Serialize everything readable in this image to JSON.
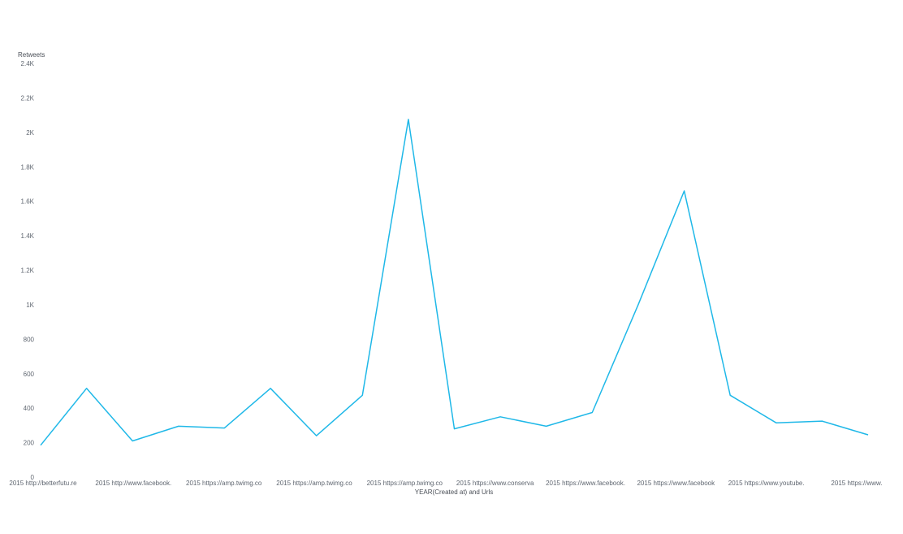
{
  "chart_data": {
    "type": "line",
    "title": "",
    "xlabel": "YEAR(Created at) and Urls",
    "ylabel": "Retweets",
    "ylim": [
      0,
      2400
    ],
    "yticks": [
      0,
      200,
      400,
      600,
      800,
      1000,
      1200,
      1400,
      1600,
      1800,
      2000,
      2200,
      2400
    ],
    "ytick_labels": [
      "0",
      "200",
      "400",
      "600",
      "800",
      "1K",
      "1.2K",
      "1.4K",
      "1.6K",
      "1.8K",
      "2K",
      "2.2K",
      "2.4K"
    ],
    "grid": false,
    "x_tick_labels": [
      "2015 http://betterfutu.re",
      "2015 http://www.facebook.",
      "2015 https://amp.twimg.co",
      "2015 https://amp.twimg.co",
      "2015 https://amp.twimg.co",
      "2015 https://www.conserva",
      "2015 https://www.facebook.",
      "2015 https://www.facebook",
      "2015 https://www.youtube.",
      "2015 https://www."
    ],
    "line_color": "#1fb8e8",
    "series": [
      {
        "values": [
          185,
          515,
          210,
          295,
          285,
          515,
          240,
          475,
          2075,
          280,
          350,
          295,
          375,
          1000,
          1660,
          475,
          315,
          325,
          245
        ]
      }
    ]
  }
}
